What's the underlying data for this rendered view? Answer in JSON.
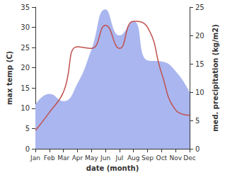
{
  "chart_data": {
    "type": "line",
    "x_label": "date (month)",
    "y_label": "max temp (C)",
    "y2_label": "med. precipitation (kg/m2)",
    "categories": [
      "Jan",
      "Feb",
      "Mar",
      "Apr",
      "May",
      "Jun",
      "Jul",
      "Aug",
      "Sep",
      "Oct",
      "Nov",
      "Dec"
    ],
    "series": [
      {
        "type": "area",
        "axis": "y2",
        "color": "#aab6ef",
        "values": [
          7.8,
          9.7,
          8.4,
          11.5,
          17.5,
          24.6,
          20,
          22.5,
          15.6,
          15.4,
          13.7,
          10
        ]
      },
      {
        "type": "line",
        "color": "#c0504d",
        "values": [
          4.5,
          9,
          14,
          25.2,
          24.8,
          30.5,
          24.8,
          31.5,
          30,
          18.7,
          9.6,
          8.3
        ]
      }
    ],
    "ylim": [
      0,
      35
    ],
    "yticks": [
      0,
      5,
      10,
      15,
      20,
      25,
      30,
      35
    ],
    "y2lim": [
      0,
      25
    ],
    "y2ticks": [
      0,
      5,
      10,
      15,
      20,
      25
    ],
    "grid": false
  }
}
